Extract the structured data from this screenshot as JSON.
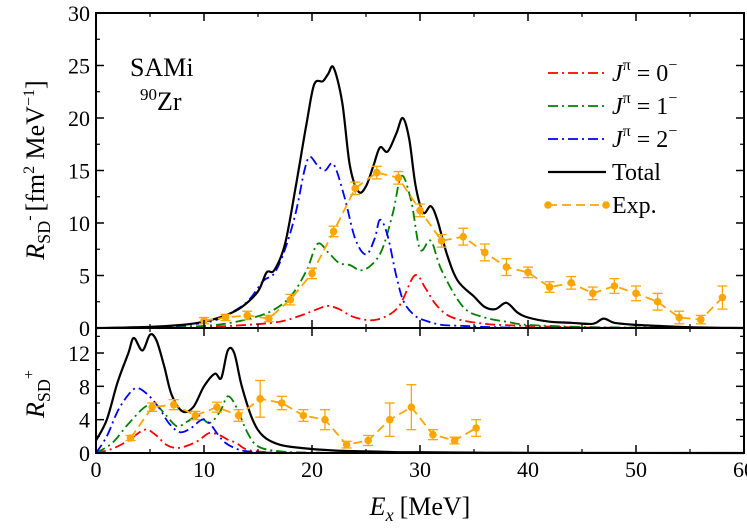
{
  "chart_data": {
    "type": "line",
    "xlabel_main": "E",
    "xlabel_sub": "x",
    "xlabel_unit": "[MeV]",
    "xlim": [
      0,
      60
    ],
    "x_ticks": [
      0,
      10,
      20,
      30,
      40,
      50,
      60
    ],
    "x_tick_labels": [
      "0",
      "10",
      "20",
      "30",
      "40",
      "50",
      "60"
    ],
    "colors": {
      "j0": "#ff0000",
      "j1": "#008000",
      "j2": "#0000ff",
      "total": "#000000",
      "exp": "#ffa500"
    },
    "top_panel": {
      "ylabel_main": "R",
      "ylabel_sub": "SD",
      "ylabel_sup": "-",
      "ylabel_unit": "[fm",
      "ylabel_unit_sup": "2",
      "ylabel_unit2": " MeV",
      "ylabel_unit2_sup": "−1",
      "ylabel_close": "]",
      "ylim": [
        0,
        30
      ],
      "y_ticks": [
        0,
        5,
        10,
        15,
        20,
        25,
        30
      ],
      "y_tick_labels": [
        "0",
        "5",
        "10",
        "15",
        "20",
        "25",
        "30"
      ],
      "annotation_line1": "SAMi",
      "annotation_iso": "90",
      "annotation_elem": "Zr",
      "legend": [
        {
          "key": "j0",
          "prefix": "J",
          "sup": "π",
          "eq": " = 0",
          "eq_sup": "−"
        },
        {
          "key": "j1",
          "prefix": "J",
          "sup": "π",
          "eq": " = 1",
          "eq_sup": "−"
        },
        {
          "key": "j2",
          "prefix": "J",
          "sup": "π",
          "eq": " = 2",
          "eq_sup": "−"
        },
        {
          "key": "total",
          "label": "Total"
        },
        {
          "key": "exp",
          "label": "Exp."
        }
      ],
      "series": [
        {
          "name": "J=0-",
          "key": "j0",
          "dash": "10,4,2,4",
          "x": [
            0,
            5,
            10,
            14,
            17,
            19,
            20.5,
            21.5,
            22.5,
            24,
            26,
            28,
            29.5,
            30.5,
            31.5,
            33,
            36,
            40,
            45,
            50,
            55,
            60
          ],
          "y": [
            0,
            0.02,
            0.1,
            0.3,
            0.6,
            1.2,
            1.8,
            2.1,
            1.8,
            1.0,
            0.8,
            2.0,
            5.0,
            3.8,
            2.2,
            1.0,
            0.4,
            0.2,
            0.05,
            0.02,
            0.01,
            0
          ]
        },
        {
          "name": "J=1-",
          "key": "j1",
          "dash": "10,4,2,4",
          "x": [
            0,
            5,
            10,
            13,
            16,
            18,
            19.5,
            20.5,
            21.5,
            22.5,
            23.5,
            24.5,
            25.5,
            26.5,
            27.5,
            28.3,
            29.2,
            30,
            31,
            32,
            34,
            36,
            38,
            40,
            45,
            50,
            55,
            60
          ],
          "y": [
            0,
            0.02,
            0.2,
            0.6,
            1.5,
            3.0,
            5.5,
            8.0,
            7.2,
            6.2,
            6.0,
            5.5,
            6.0,
            7.5,
            11.0,
            14.5,
            12.0,
            7.5,
            8.3,
            5.5,
            2.0,
            1.0,
            0.6,
            0.3,
            0.1,
            0.05,
            0.02,
            0
          ]
        },
        {
          "name": "J=2-",
          "key": "j2",
          "dash": "10,4,2,4",
          "x": [
            0,
            5,
            10,
            12,
            14,
            15.5,
            16.5,
            17.5,
            18.5,
            19.3,
            19.8,
            20.5,
            21.2,
            22,
            23,
            24,
            25,
            25.8,
            26.3,
            27,
            27.8,
            28.5,
            29.5,
            30.5,
            32,
            34,
            36,
            38,
            40,
            45,
            50,
            55,
            60
          ],
          "y": [
            0,
            0.05,
            0.5,
            1.2,
            2.5,
            4.5,
            5.2,
            7.5,
            11.0,
            15.0,
            16.3,
            15.5,
            15.0,
            15.6,
            12.5,
            8.5,
            7.0,
            8.5,
            10.3,
            8.8,
            5.0,
            2.5,
            1.2,
            0.7,
            0.3,
            0.2,
            0.1,
            0.05,
            0.02,
            0.01,
            0,
            0,
            0
          ]
        },
        {
          "name": "Total",
          "key": "total",
          "dash": "",
          "x": [
            0,
            5,
            8,
            10,
            12,
            13.5,
            15,
            15.8,
            16.5,
            17.5,
            18.5,
            19.5,
            20.2,
            21,
            21.5,
            22,
            22.8,
            23.5,
            24.3,
            25,
            25.7,
            26.3,
            27,
            27.8,
            28.4,
            29,
            29.6,
            30.3,
            31,
            31.6,
            32.5,
            33.5,
            35,
            36,
            37,
            38,
            39,
            40,
            42,
            44,
            46,
            47,
            48,
            50,
            52,
            54,
            56,
            58,
            60
          ],
          "y": [
            0,
            0.1,
            0.3,
            0.6,
            1.2,
            2.0,
            3.5,
            5.3,
            5.5,
            8.0,
            13.5,
            19.5,
            23.2,
            23.5,
            24.2,
            24.8,
            21.5,
            15.5,
            13.0,
            13.5,
            15.5,
            17.2,
            16.8,
            18.5,
            20.0,
            18.0,
            13.5,
            11.0,
            11.6,
            10.3,
            7.0,
            4.5,
            3.0,
            2.0,
            1.8,
            2.4,
            1.5,
            1.0,
            0.6,
            0.5,
            0.4,
            0.9,
            0.5,
            0.3,
            0.2,
            0.1,
            0.05,
            0.02,
            0
          ]
        },
        {
          "name": "Exp.",
          "key": "exp",
          "dash": "9,5",
          "markers": true,
          "x": [
            10,
            12,
            14,
            16,
            18,
            20,
            22,
            24,
            26,
            28,
            30,
            32,
            34,
            36,
            38,
            40,
            42,
            44,
            46,
            48,
            50,
            52,
            54,
            56,
            58
          ],
          "y": [
            0.7,
            1.0,
            1.2,
            0.9,
            2.7,
            5.2,
            9.2,
            13.3,
            14.8,
            14.3,
            11.2,
            8.3,
            8.7,
            7.2,
            5.8,
            5.3,
            3.9,
            4.3,
            3.3,
            4.0,
            3.3,
            2.5,
            1.0,
            0.8,
            2.9
          ],
          "err": [
            0.3,
            0.3,
            0.4,
            0.3,
            0.5,
            0.5,
            0.5,
            0.6,
            0.6,
            0.6,
            0.6,
            0.6,
            0.8,
            0.8,
            0.8,
            0.5,
            0.5,
            0.6,
            0.6,
            0.7,
            0.7,
            0.8,
            0.6,
            0.4,
            1.1
          ]
        }
      ]
    },
    "bottom_panel": {
      "ylabel_main": "R",
      "ylabel_sub": "SD",
      "ylabel_sup": "+",
      "ylim": [
        0,
        15
      ],
      "y_ticks": [
        0,
        4,
        8,
        12
      ],
      "y_tick_labels": [
        "0",
        "4",
        "8",
        "12"
      ],
      "series": [
        {
          "name": "J=0+",
          "key": "j0",
          "dash": "10,4,2,4",
          "x": [
            0,
            1.5,
            3,
            4.5,
            5.5,
            6.5,
            7.5,
            8.5,
            9.5,
            10.5,
            11.5,
            12.2,
            13,
            14,
            16,
            20,
            25,
            30,
            40,
            60
          ],
          "y": [
            0,
            0.5,
            1.5,
            2.8,
            2.2,
            1.0,
            0.6,
            0.9,
            1.5,
            2.4,
            2.1,
            1.6,
            1.2,
            0.4,
            0.1,
            0.03,
            0,
            0,
            0,
            0
          ]
        },
        {
          "name": "J=1+",
          "key": "j1",
          "dash": "10,4,2,4",
          "x": [
            0,
            1.5,
            3,
            4.5,
            5.5,
            6.5,
            7.5,
            8.5,
            9.5,
            10.5,
            11.5,
            12.2,
            13,
            14,
            15,
            17,
            20,
            25,
            30,
            40,
            60
          ],
          "y": [
            0,
            1.2,
            3.5,
            5.5,
            5.8,
            4.5,
            3.2,
            3.8,
            4.5,
            3.6,
            5.0,
            6.8,
            5.5,
            2.5,
            0.8,
            0.2,
            0.05,
            0,
            0,
            0,
            0
          ]
        },
        {
          "name": "J=2+",
          "key": "j2",
          "dash": "10,4,2,4",
          "x": [
            0,
            1,
            2,
            3,
            3.8,
            4.8,
            5.8,
            6.8,
            7.8,
            8.8,
            9.8,
            10.5,
            11.3,
            12,
            13,
            14,
            16,
            20,
            25,
            30,
            40,
            60
          ],
          "y": [
            0,
            2.0,
            5.0,
            7.0,
            7.8,
            7.0,
            5.5,
            3.5,
            2.5,
            3.0,
            4.0,
            3.6,
            2.2,
            1.2,
            0.5,
            0.2,
            0.05,
            0,
            0,
            0,
            0,
            0
          ]
        },
        {
          "name": "Total",
          "key": "total",
          "dash": "",
          "x": [
            0,
            1,
            2,
            3,
            3.5,
            4.3,
            5,
            5.6,
            6.3,
            7,
            8,
            9,
            10,
            11,
            11.6,
            12.2,
            12.8,
            13.5,
            14.5,
            15.5,
            17,
            19,
            22,
            25,
            28,
            30,
            35,
            40,
            60
          ],
          "y": [
            1.5,
            4.0,
            8.5,
            12.0,
            13.8,
            12.3,
            14.2,
            13.5,
            10.5,
            7.0,
            5.0,
            5.5,
            8.0,
            9.5,
            9.0,
            12.3,
            12.0,
            8.0,
            4.0,
            2.0,
            1.0,
            0.6,
            0.3,
            0.2,
            0.1,
            0.1,
            0.05,
            0.02,
            0
          ]
        },
        {
          "name": "Exp.",
          "key": "exp",
          "dash": "9,5",
          "markers": true,
          "x": [
            3.2,
            5.2,
            7.2,
            9.2,
            11.2,
            13.2,
            15.2,
            17.2,
            19.2,
            21.2,
            23.2,
            25.2,
            27.2,
            29.2,
            31.2,
            33.2,
            35.2
          ],
          "y": [
            1.8,
            5.5,
            5.8,
            4.5,
            5.5,
            4.5,
            6.5,
            6.0,
            4.5,
            4.0,
            1.0,
            1.5,
            4.0,
            5.5,
            2.2,
            1.5,
            3.0
          ],
          "err": [
            0.3,
            0.5,
            0.6,
            0.5,
            0.6,
            0.7,
            2.2,
            0.8,
            0.7,
            1.2,
            0.4,
            0.6,
            2.0,
            2.7,
            0.6,
            0.4,
            1.0
          ]
        }
      ]
    }
  }
}
